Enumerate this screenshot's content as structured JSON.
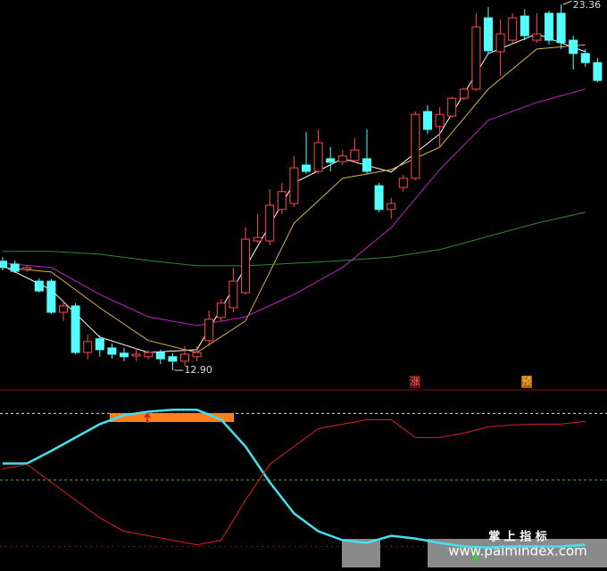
{
  "chart_data": [
    {
      "type": "candlestick",
      "ylim": [
        12.34,
        23.49
      ],
      "up_color": "#ff4a4a",
      "down_color": "#54ffff",
      "ohlc": [
        [
          16.02,
          16.14,
          15.76,
          15.84
        ],
        [
          15.94,
          16.04,
          15.68,
          15.73
        ],
        [
          15.79,
          15.91,
          15.71,
          15.84
        ],
        [
          15.45,
          15.53,
          15.12,
          15.17
        ],
        [
          15.45,
          15.51,
          14.51,
          14.56
        ],
        [
          14.56,
          14.87,
          14.31,
          14.74
        ],
        [
          14.74,
          14.82,
          13.36,
          13.41
        ],
        [
          13.41,
          13.92,
          13.21,
          13.72
        ],
        [
          13.8,
          13.9,
          13.29,
          13.49
        ],
        [
          13.54,
          13.67,
          13.23,
          13.36
        ],
        [
          13.39,
          13.54,
          13.16,
          13.29
        ],
        [
          13.31,
          13.54,
          13.16,
          13.36
        ],
        [
          13.29,
          13.49,
          13.21,
          13.41
        ],
        [
          13.41,
          13.49,
          13.08,
          13.23
        ],
        [
          13.29,
          13.39,
          12.9,
          13.16
        ],
        [
          13.16,
          13.59,
          13.03,
          13.36
        ],
        [
          13.29,
          13.59,
          13.16,
          13.41
        ],
        [
          13.75,
          14.61,
          13.59,
          14.36
        ],
        [
          14.41,
          14.94,
          14.31,
          14.82
        ],
        [
          14.69,
          15.84,
          14.56,
          15.45
        ],
        [
          15.12,
          16.99,
          15.07,
          16.65
        ],
        [
          16.6,
          17.37,
          16.55,
          16.7
        ],
        [
          16.6,
          18.08,
          16.47,
          17.62
        ],
        [
          17.5,
          18.26,
          17.37,
          18.01
        ],
        [
          17.67,
          19.03,
          17.57,
          18.69
        ],
        [
          18.77,
          19.71,
          18.52,
          18.59
        ],
        [
          18.59,
          19.79,
          18.52,
          19.41
        ],
        [
          18.95,
          19.28,
          18.59,
          18.85
        ],
        [
          18.87,
          19.2,
          18.77,
          19.03
        ],
        [
          18.9,
          19.54,
          18.85,
          19.2
        ],
        [
          18.95,
          19.79,
          18.52,
          18.59
        ],
        [
          18.18,
          18.26,
          17.42,
          17.5
        ],
        [
          17.5,
          17.83,
          17.24,
          17.67
        ],
        [
          18.13,
          18.49,
          18.01,
          18.39
        ],
        [
          18.39,
          20.3,
          18.34,
          20.22
        ],
        [
          20.3,
          20.48,
          19.66,
          19.79
        ],
        [
          19.87,
          20.43,
          19.28,
          20.22
        ],
        [
          20.17,
          20.73,
          20.12,
          20.68
        ],
        [
          20.68,
          20.99,
          20.63,
          20.94
        ],
        [
          20.94,
          23.11,
          20.89,
          22.72
        ],
        [
          22.98,
          23.29,
          21.96,
          22.04
        ],
        [
          22.01,
          22.93,
          21.32,
          22.52
        ],
        [
          22.34,
          23.11,
          22.21,
          22.98
        ],
        [
          23.03,
          23.23,
          22.34,
          22.47
        ],
        [
          22.34,
          23.11,
          22.27,
          22.52
        ],
        [
          23.11,
          23.18,
          22.21,
          22.34
        ],
        [
          23.11,
          23.36,
          22.09,
          22.27
        ],
        [
          22.34,
          22.47,
          21.5,
          21.96
        ],
        [
          21.96,
          22.09,
          21.58,
          21.7
        ],
        [
          21.7,
          21.83,
          21.14,
          21.19
        ]
      ],
      "ma_x": [
        0,
        4,
        8,
        12,
        16,
        20,
        24,
        28,
        32,
        36,
        40,
        44,
        48
      ],
      "series": [
        {
          "color": "#ffffff",
          "values": [
            15.89,
            15.2,
            13.85,
            13.41,
            13.49,
            15.84,
            18.26,
            18.95,
            18.57,
            19.66,
            21.96,
            22.52,
            22.01
          ]
        },
        {
          "color": "#d6b24a",
          "values": [
            15.84,
            15.71,
            14.69,
            13.75,
            13.41,
            14.31,
            17.11,
            18.39,
            18.64,
            19.28,
            20.94,
            22.09,
            22.21
          ]
        },
        {
          "color": "#c020c0",
          "values": [
            15.96,
            15.84,
            15.07,
            14.43,
            14.18,
            14.43,
            15.07,
            15.84,
            16.98,
            18.64,
            20.05,
            20.56,
            20.94
          ]
        },
        {
          "color": "#2e8b2e",
          "values": [
            16.3,
            16.3,
            16.22,
            16.04,
            15.89,
            15.89,
            15.96,
            16.04,
            16.14,
            16.35,
            16.73,
            17.11,
            17.42
          ]
        }
      ],
      "annotations": [
        {
          "value": 23.36,
          "label": "23.36"
        },
        {
          "value": 12.9,
          "label": "12.90"
        }
      ],
      "markers": [
        "涨",
        "预"
      ]
    },
    {
      "type": "line",
      "ylim": [
        -5,
        117
      ],
      "x": [
        0,
        2,
        4,
        6,
        8,
        10,
        12,
        14,
        16,
        18,
        20,
        22,
        24,
        26,
        28,
        30,
        32,
        34,
        36,
        38,
        40,
        42,
        44,
        46,
        48
      ],
      "ref_lines": [
        {
          "value": 100,
          "color": "#dddddd"
        },
        {
          "value": 50,
          "color": "#4caf30"
        },
        {
          "value": 0,
          "color": "#c000c0"
        }
      ],
      "series": [
        {
          "color": "#44e0f0",
          "values": [
            62.4,
            62.4,
            71.8,
            81.9,
            91.9,
            98.7,
            101.3,
            102.7,
            102.7,
            95.3,
            75.2,
            48.3,
            24.8,
            11.4,
            4.7,
            2.7,
            8.1,
            6.0,
            2.7,
            0,
            -0.7,
            0,
            0,
            0,
            1.3
          ]
        },
        {
          "color": "#e02020",
          "values": [
            58.4,
            61.7,
            48.3,
            34.9,
            21.5,
            11.4,
            8.1,
            4.7,
            1.3,
            4.7,
            34.9,
            61.7,
            75.2,
            88.6,
            91.9,
            95.3,
            95.3,
            81.9,
            81.9,
            85.2,
            89.9,
            91.3,
            91.9,
            91.9,
            94.0
          ]
        }
      ]
    }
  ],
  "watermark": {
    "title": "掌 上 指 标",
    "url": "www.palmindex.com"
  }
}
